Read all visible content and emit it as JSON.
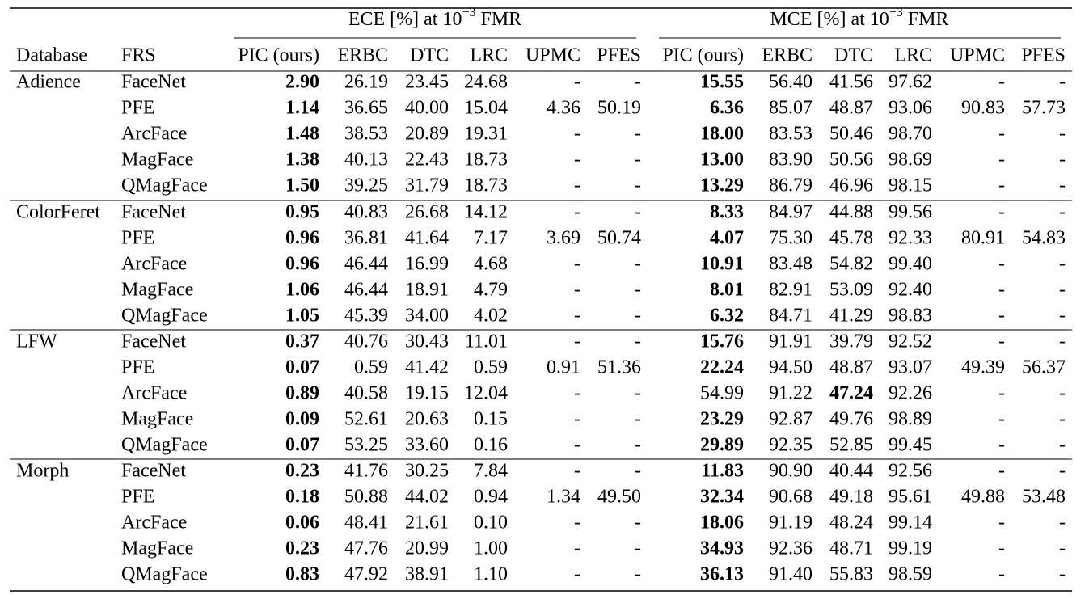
{
  "header": {
    "groups": [
      {
        "prefix": "ECE [%] at 10",
        "exponent": "−3",
        "suffix": "FMR"
      },
      {
        "prefix": "MCE [%] at 10",
        "exponent": "−3",
        "suffix": "FMR"
      }
    ],
    "columns": [
      "Database",
      "FRS",
      "PIC (ours)",
      "ERBC",
      "DTC",
      "LRC",
      "UPMC",
      "PFES",
      "PIC (ours)",
      "ERBC",
      "DTC",
      "LRC",
      "UPMC",
      "PFES"
    ]
  },
  "groups": [
    {
      "database": "Adience",
      "rows": [
        {
          "frs": "FaceNet",
          "ece": [
            "2.90",
            "26.19",
            "23.45",
            "24.68",
            "-",
            "-"
          ],
          "mce": [
            "15.55",
            "56.40",
            "41.56",
            "97.62",
            "-",
            "-"
          ],
          "ece_bold": 0,
          "mce_bold": 0
        },
        {
          "frs": "PFE",
          "ece": [
            "1.14",
            "36.65",
            "40.00",
            "15.04",
            "4.36",
            "50.19"
          ],
          "mce": [
            "6.36",
            "85.07",
            "48.87",
            "93.06",
            "90.83",
            "57.73"
          ],
          "ece_bold": 0,
          "mce_bold": 0
        },
        {
          "frs": "ArcFace",
          "ece": [
            "1.48",
            "38.53",
            "20.89",
            "19.31",
            "-",
            "-"
          ],
          "mce": [
            "18.00",
            "83.53",
            "50.46",
            "98.70",
            "-",
            "-"
          ],
          "ece_bold": 0,
          "mce_bold": 0
        },
        {
          "frs": "MagFace",
          "ece": [
            "1.38",
            "40.13",
            "22.43",
            "18.73",
            "-",
            "-"
          ],
          "mce": [
            "13.00",
            "83.90",
            "50.56",
            "98.69",
            "-",
            "-"
          ],
          "ece_bold": 0,
          "mce_bold": 0
        },
        {
          "frs": "QMagFace",
          "ece": [
            "1.50",
            "39.25",
            "31.79",
            "18.73",
            "-",
            "-"
          ],
          "mce": [
            "13.29",
            "86.79",
            "46.96",
            "98.15",
            "-",
            "-"
          ],
          "ece_bold": 0,
          "mce_bold": 0
        }
      ]
    },
    {
      "database": "ColorFeret",
      "rows": [
        {
          "frs": "FaceNet",
          "ece": [
            "0.95",
            "40.83",
            "26.68",
            "14.12",
            "-",
            "-"
          ],
          "mce": [
            "8.33",
            "84.97",
            "44.88",
            "99.56",
            "-",
            "-"
          ],
          "ece_bold": 0,
          "mce_bold": 0
        },
        {
          "frs": "PFE",
          "ece": [
            "0.96",
            "36.81",
            "41.64",
            "7.17",
            "3.69",
            "50.74"
          ],
          "mce": [
            "4.07",
            "75.30",
            "45.78",
            "92.33",
            "80.91",
            "54.83"
          ],
          "ece_bold": 0,
          "mce_bold": 0
        },
        {
          "frs": "ArcFace",
          "ece": [
            "0.96",
            "46.44",
            "16.99",
            "4.68",
            "-",
            "-"
          ],
          "mce": [
            "10.91",
            "83.48",
            "54.82",
            "99.40",
            "-",
            "-"
          ],
          "ece_bold": 0,
          "mce_bold": 0
        },
        {
          "frs": "MagFace",
          "ece": [
            "1.06",
            "46.44",
            "18.91",
            "4.79",
            "-",
            "-"
          ],
          "mce": [
            "8.01",
            "82.91",
            "53.09",
            "92.40",
            "-",
            "-"
          ],
          "ece_bold": 0,
          "mce_bold": 0
        },
        {
          "frs": "QMagFace",
          "ece": [
            "1.05",
            "45.39",
            "34.00",
            "4.02",
            "-",
            "-"
          ],
          "mce": [
            "6.32",
            "84.71",
            "41.29",
            "98.83",
            "-",
            "-"
          ],
          "ece_bold": 0,
          "mce_bold": 0
        }
      ]
    },
    {
      "database": "LFW",
      "rows": [
        {
          "frs": "FaceNet",
          "ece": [
            "0.37",
            "40.76",
            "30.43",
            "11.01",
            "-",
            "-"
          ],
          "mce": [
            "15.76",
            "91.91",
            "39.79",
            "92.52",
            "-",
            "-"
          ],
          "ece_bold": 0,
          "mce_bold": 0
        },
        {
          "frs": "PFE",
          "ece": [
            "0.07",
            "0.59",
            "41.42",
            "0.59",
            "0.91",
            "51.36"
          ],
          "mce": [
            "22.24",
            "94.50",
            "48.87",
            "93.07",
            "49.39",
            "56.37"
          ],
          "ece_bold": 0,
          "mce_bold": 0
        },
        {
          "frs": "ArcFace",
          "ece": [
            "0.89",
            "40.58",
            "19.15",
            "12.04",
            "-",
            "-"
          ],
          "mce": [
            "54.99",
            "91.22",
            "47.24",
            "92.26",
            "-",
            "-"
          ],
          "ece_bold": 0,
          "mce_bold": 2
        },
        {
          "frs": "MagFace",
          "ece": [
            "0.09",
            "52.61",
            "20.63",
            "0.15",
            "-",
            "-"
          ],
          "mce": [
            "23.29",
            "92.87",
            "49.76",
            "98.89",
            "-",
            "-"
          ],
          "ece_bold": 0,
          "mce_bold": 0
        },
        {
          "frs": "QMagFace",
          "ece": [
            "0.07",
            "53.25",
            "33.60",
            "0.16",
            "-",
            "-"
          ],
          "mce": [
            "29.89",
            "92.35",
            "52.85",
            "99.45",
            "-",
            "-"
          ],
          "ece_bold": 0,
          "mce_bold": 0
        }
      ]
    },
    {
      "database": "Morph",
      "rows": [
        {
          "frs": "FaceNet",
          "ece": [
            "0.23",
            "41.76",
            "30.25",
            "7.84",
            "-",
            "-"
          ],
          "mce": [
            "11.83",
            "90.90",
            "40.44",
            "92.56",
            "-",
            "-"
          ],
          "ece_bold": 0,
          "mce_bold": 0
        },
        {
          "frs": "PFE",
          "ece": [
            "0.18",
            "50.88",
            "44.02",
            "0.94",
            "1.34",
            "49.50"
          ],
          "mce": [
            "32.34",
            "90.68",
            "49.18",
            "95.61",
            "49.88",
            "53.48"
          ],
          "ece_bold": 0,
          "mce_bold": 0
        },
        {
          "frs": "ArcFace",
          "ece": [
            "0.06",
            "48.41",
            "21.61",
            "0.10",
            "-",
            "-"
          ],
          "mce": [
            "18.06",
            "91.19",
            "48.24",
            "99.14",
            "-",
            "-"
          ],
          "ece_bold": 0,
          "mce_bold": 0
        },
        {
          "frs": "MagFace",
          "ece": [
            "0.23",
            "47.76",
            "20.99",
            "1.00",
            "-",
            "-"
          ],
          "mce": [
            "34.93",
            "92.36",
            "48.71",
            "99.19",
            "-",
            "-"
          ],
          "ece_bold": 0,
          "mce_bold": 0
        },
        {
          "frs": "QMagFace",
          "ece": [
            "0.83",
            "47.92",
            "38.91",
            "1.10",
            "-",
            "-"
          ],
          "mce": [
            "36.13",
            "91.40",
            "55.83",
            "98.59",
            "-",
            "-"
          ],
          "ece_bold": 0,
          "mce_bold": 0
        }
      ]
    }
  ]
}
